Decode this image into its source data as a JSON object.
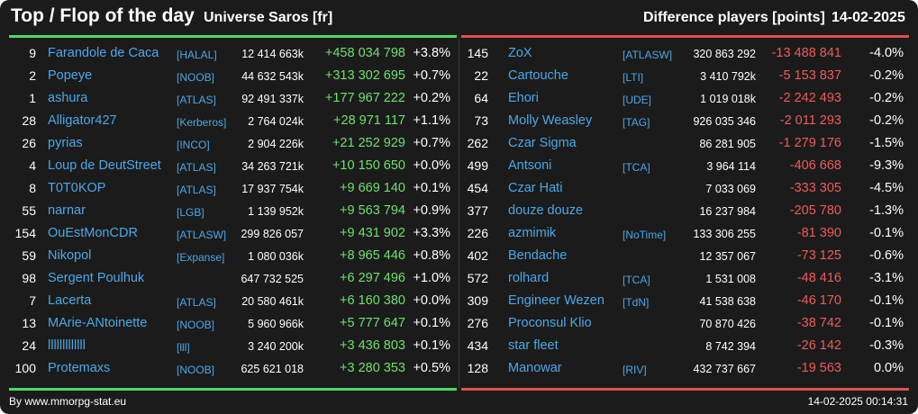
{
  "header": {
    "title": "Top / Flop of the day",
    "server": "Universe Saros [fr]",
    "metric": "Difference players [points]",
    "date": "14-02-2025"
  },
  "colors": {
    "background": "#1b1b1b",
    "name": "#4aa8e8",
    "positive": "#6ee06e",
    "negative": "#ee5b5b",
    "top_line": "#4cd964",
    "flop_line": "#e05050"
  },
  "top": [
    {
      "rank": "9",
      "name": "Farandole de Caca",
      "tag": "[HALAL]",
      "total": "12 414 663k",
      "diff": "+458 034 798",
      "pct": "+3.8%"
    },
    {
      "rank": "2",
      "name": "Popeye",
      "tag": "[NOOB]",
      "total": "44 632 543k",
      "diff": "+313 302 695",
      "pct": "+0.7%"
    },
    {
      "rank": "1",
      "name": "ashura",
      "tag": "[ATLAS]",
      "total": "92 491 337k",
      "diff": "+177 967 222",
      "pct": "+0.2%"
    },
    {
      "rank": "28",
      "name": "Alligator427",
      "tag": "[Kerberos]",
      "total": "2 764 024k",
      "diff": "+28 971 117",
      "pct": "+1.1%"
    },
    {
      "rank": "26",
      "name": "pyrias",
      "tag": "[INCO]",
      "total": "2 904 226k",
      "diff": "+21 252 929",
      "pct": "+0.7%"
    },
    {
      "rank": "4",
      "name": "Loup de DeutStreet",
      "tag": "[ATLAS]",
      "total": "34 263 721k",
      "diff": "+10 150 650",
      "pct": "+0.0%"
    },
    {
      "rank": "8",
      "name": "T0T0KOP",
      "tag": "[ATLAS]",
      "total": "17 937 754k",
      "diff": "+9 669 140",
      "pct": "+0.1%"
    },
    {
      "rank": "55",
      "name": "narnar",
      "tag": "[LGB]",
      "total": "1 139 952k",
      "diff": "+9 563 794",
      "pct": "+0.9%"
    },
    {
      "rank": "154",
      "name": "OuEstMonCDR",
      "tag": "[ATLASW]",
      "total": "299 826 057",
      "diff": "+9 431 902",
      "pct": "+3.3%"
    },
    {
      "rank": "59",
      "name": "Nikopol",
      "tag": "[Expanse]",
      "total": "1 080 036k",
      "diff": "+8 965 446",
      "pct": "+0.8%"
    },
    {
      "rank": "98",
      "name": "Sergent Poulhuk",
      "tag": "",
      "total": "647 732 525",
      "diff": "+6 297 496",
      "pct": "+1.0%"
    },
    {
      "rank": "7",
      "name": "Lacerta",
      "tag": "[ATLAS]",
      "total": "20 580 461k",
      "diff": "+6 160 380",
      "pct": "+0.0%"
    },
    {
      "rank": "13",
      "name": "MArie-ANtoinette",
      "tag": "[NOOB]",
      "total": "5 960 966k",
      "diff": "+5 777 647",
      "pct": "+0.1%"
    },
    {
      "rank": "24",
      "name": "lllllllllllll",
      "tag": "[lll]",
      "total": "3 240 200k",
      "diff": "+3 436 803",
      "pct": "+0.1%"
    },
    {
      "rank": "100",
      "name": "Protemaxs",
      "tag": "[NOOB]",
      "total": "625 621 018",
      "diff": "+3 280 353",
      "pct": "+0.5%"
    }
  ],
  "flop": [
    {
      "rank": "145",
      "name": "ZoX",
      "tag": "[ATLASW]",
      "total": "320 863 292",
      "diff": "-13 488 841",
      "pct": "-4.0%"
    },
    {
      "rank": "22",
      "name": "Cartouche",
      "tag": "[LTI]",
      "total": "3 410 792k",
      "diff": "-5 153 837",
      "pct": "-0.2%"
    },
    {
      "rank": "64",
      "name": "Ehori",
      "tag": "[UDE]",
      "total": "1 019 018k",
      "diff": "-2 242 493",
      "pct": "-0.2%"
    },
    {
      "rank": "73",
      "name": "Molly Weasley",
      "tag": "[TAG]",
      "total": "926 035 346",
      "diff": "-2 011 293",
      "pct": "-0.2%"
    },
    {
      "rank": "262",
      "name": "Czar Sigma",
      "tag": "",
      "total": "86 281 905",
      "diff": "-1 279 176",
      "pct": "-1.5%"
    },
    {
      "rank": "499",
      "name": "Antsoni",
      "tag": "[TCA]",
      "total": "3 964 114",
      "diff": "-406 668",
      "pct": "-9.3%"
    },
    {
      "rank": "454",
      "name": "Czar Hati",
      "tag": "",
      "total": "7 033 069",
      "diff": "-333 305",
      "pct": "-4.5%"
    },
    {
      "rank": "377",
      "name": "douze douze",
      "tag": "",
      "total": "16 237 984",
      "diff": "-205 780",
      "pct": "-1.3%"
    },
    {
      "rank": "226",
      "name": "azmimik",
      "tag": "[NoTime]",
      "total": "133 306 255",
      "diff": "-81 390",
      "pct": "-0.1%"
    },
    {
      "rank": "402",
      "name": "Bendache",
      "tag": "",
      "total": "12 357 067",
      "diff": "-73 125",
      "pct": "-0.6%"
    },
    {
      "rank": "572",
      "name": "rolhard",
      "tag": "[TCA]",
      "total": "1 531 008",
      "diff": "-48 416",
      "pct": "-3.1%"
    },
    {
      "rank": "309",
      "name": "Engineer Wezen",
      "tag": "[TdN]",
      "total": "41 538 638",
      "diff": "-46 170",
      "pct": "-0.1%"
    },
    {
      "rank": "276",
      "name": "Proconsul Klio",
      "tag": "",
      "total": "70 870 426",
      "diff": "-38 742",
      "pct": "-0.1%"
    },
    {
      "rank": "434",
      "name": "star fleet",
      "tag": "",
      "total": "8 742 394",
      "diff": "-26 142",
      "pct": "-0.3%"
    },
    {
      "rank": "128",
      "name": "Manowar",
      "tag": "[RIV]",
      "total": "432 737 667",
      "diff": "-19 563",
      "pct": "0.0%"
    }
  ],
  "footer": {
    "source": "By www.mmorpg-stat.eu",
    "timestamp": "14-02-2025 00:14:31"
  }
}
